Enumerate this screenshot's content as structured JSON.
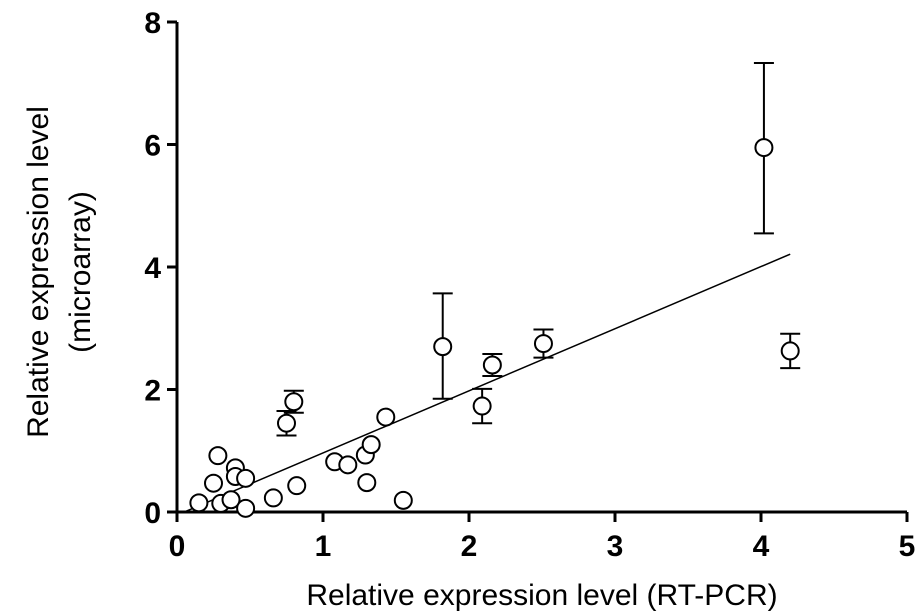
{
  "chart_data": {
    "type": "scatter",
    "title": "",
    "xlabel": "Relative expression level (RT-PCR)",
    "ylabel_lines": [
      "Relative expression level",
      "(microarray)"
    ],
    "xlim": [
      0,
      5
    ],
    "ylim": [
      0,
      8
    ],
    "x_ticks": [
      "0",
      "1",
      "2",
      "3",
      "4",
      "5"
    ],
    "y_ticks": [
      "0",
      "2",
      "4",
      "6",
      "8"
    ],
    "grid": false,
    "points": [
      {
        "x": 0.15,
        "y": 0.15
      },
      {
        "x": 0.25,
        "y": 0.47
      },
      {
        "x": 0.28,
        "y": 0.92
      },
      {
        "x": 0.3,
        "y": 0.14
      },
      {
        "x": 0.37,
        "y": 0.2
      },
      {
        "x": 0.4,
        "y": 0.72
      },
      {
        "x": 0.4,
        "y": 0.58
      },
      {
        "x": 0.47,
        "y": 0.55
      },
      {
        "x": 0.47,
        "y": 0.06
      },
      {
        "x": 0.66,
        "y": 0.23
      },
      {
        "x": 0.75,
        "y": 1.45,
        "err_low": 1.25,
        "err_high": 1.65
      },
      {
        "x": 0.8,
        "y": 1.8,
        "err_low": 1.62,
        "err_high": 1.98
      },
      {
        "x": 0.82,
        "y": 0.43
      },
      {
        "x": 1.08,
        "y": 0.82
      },
      {
        "x": 1.17,
        "y": 0.77
      },
      {
        "x": 1.29,
        "y": 0.93
      },
      {
        "x": 1.3,
        "y": 0.48
      },
      {
        "x": 1.33,
        "y": 1.1
      },
      {
        "x": 1.43,
        "y": 1.55
      },
      {
        "x": 1.55,
        "y": 0.19
      },
      {
        "x": 1.82,
        "y": 2.7,
        "err_low": 1.85,
        "err_high": 3.57
      },
      {
        "x": 2.09,
        "y": 1.73,
        "err_low": 1.45,
        "err_high": 2.01
      },
      {
        "x": 2.16,
        "y": 2.4,
        "err_low": 2.22,
        "err_high": 2.58
      },
      {
        "x": 2.51,
        "y": 2.75,
        "err_low": 2.52,
        "err_high": 2.98
      },
      {
        "x": 4.02,
        "y": 5.95,
        "err_low": 4.55,
        "err_high": 7.33
      },
      {
        "x": 4.2,
        "y": 2.63,
        "err_low": 2.35,
        "err_high": 2.91
      }
    ],
    "fit_line": {
      "x": [
        0.05,
        4.2
      ],
      "y": [
        0.0,
        4.21
      ]
    }
  }
}
